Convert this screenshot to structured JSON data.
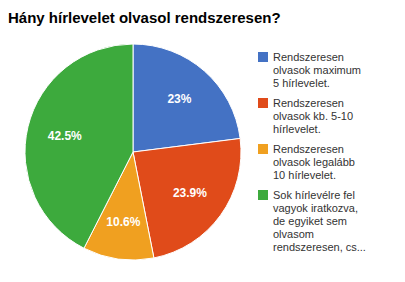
{
  "chart_data": {
    "type": "pie",
    "title": "Hány hírlevelet olvasol rendszeresen?",
    "categories": [
      "Rendszeresen\nolvasok maximum\n5 hírlevelet.",
      "Rendszeresen\nolvasok kb. 5-10\nhírlevelet.",
      "Rendszeresen\nolvasok legalább\n10 hírlevelet.",
      "Sok hírlevélre fel\nvagyok iratkozva,\nde egyiket sem\nolvasom\nrendszeresen, cs..."
    ],
    "values": [
      23.0,
      23.9,
      10.6,
      42.5
    ],
    "value_labels": [
      "23%",
      "23.9%",
      "10.6%",
      "42.5%"
    ],
    "colors": [
      "#4472C4",
      "#E04B1A",
      "#F0A020",
      "#3DAA3D"
    ],
    "data_labels": true,
    "legend": "right"
  }
}
